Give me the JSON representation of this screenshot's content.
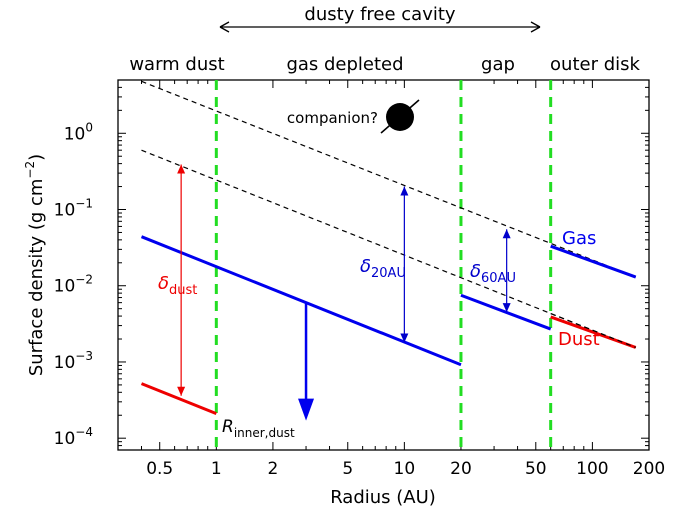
{
  "chart_data": {
    "type": "line",
    "title": "",
    "xlabel": "Radius (AU)",
    "ylabel": "Surface density (g cm",
    "ylabel_sup": "−2",
    "ylabel_close": ")",
    "x_scale": "log",
    "y_scale": "log",
    "xlim": [
      0.3,
      200
    ],
    "ylim": [
      7e-05,
      5
    ],
    "x_ticks": [
      {
        "value": 0.5,
        "label": "0.5"
      },
      {
        "value": 1,
        "label": "1"
      },
      {
        "value": 2,
        "label": "2"
      },
      {
        "value": 5,
        "label": "5"
      },
      {
        "value": 10,
        "label": "10"
      },
      {
        "value": 20,
        "label": "20"
      },
      {
        "value": 50,
        "label": "50"
      },
      {
        "value": 100,
        "label": "100"
      },
      {
        "value": 200,
        "label": "200"
      }
    ],
    "y_ticks": [
      {
        "value": 0.0001,
        "base": "10",
        "exp": "−4"
      },
      {
        "value": 0.001,
        "base": "10",
        "exp": "−3"
      },
      {
        "value": 0.01,
        "base": "10",
        "exp": "−2"
      },
      {
        "value": 0.1,
        "base": "10",
        "exp": "−1"
      },
      {
        "value": 1,
        "base": "10",
        "exp": "0"
      }
    ],
    "vlines": [
      1,
      20,
      60
    ],
    "series": [
      {
        "name": "Gas",
        "color": "#0000ee",
        "style": "solid",
        "segments": [
          [
            [
              0.4,
              0.044
            ],
            [
              20,
              0.00092
            ]
          ],
          [
            [
              20,
              0.0075
            ],
            [
              60,
              0.0027
            ]
          ],
          [
            [
              60,
              0.033
            ],
            [
              170,
              0.013
            ]
          ]
        ]
      },
      {
        "name": "Dust",
        "color": "#ee0000",
        "style": "solid",
        "segments": [
          [
            [
              0.4,
              0.00052
            ],
            [
              1,
              0.00021
            ]
          ],
          [
            [
              60,
              0.0039
            ],
            [
              170,
              0.00155
            ]
          ]
        ]
      },
      {
        "name": "",
        "color": "#000000",
        "style": "dashed",
        "segments": [
          [
            [
              0.4,
              4.8
            ],
            [
              170,
              0.013
            ]
          ],
          [
            [
              0.4,
              0.6
            ],
            [
              170,
              0.00155
            ]
          ]
        ]
      }
    ],
    "arrows": [
      {
        "x": 0.65,
        "y1": 0.00036,
        "y2": 0.39,
        "color": "#ee0000",
        "double": true
      },
      {
        "x": 10,
        "y1": 0.0018,
        "y2": 0.2,
        "color": "#0000cc",
        "double": true
      },
      {
        "x": 35,
        "y1": 0.0045,
        "y2": 0.055,
        "color": "#0000cc",
        "double": true
      },
      {
        "x": 3,
        "y1": 0.006,
        "y2": 0.00017,
        "color": "#0000ee",
        "double": false
      }
    ],
    "labels": {
      "delta_dust": "δ",
      "delta_dust_sub": "dust",
      "delta_20": "δ",
      "delta_20_sub": "20AU",
      "delta_60": "δ",
      "delta_60_sub": "60AU",
      "gas": "Gas",
      "dust": "Dust",
      "companion": "companion?",
      "r_inner": "R",
      "r_inner_sub": "inner,dust"
    },
    "region_labels": [
      "warm dust",
      "gas depleted",
      "gap",
      "outer disk"
    ],
    "cavity_label": "dusty free cavity",
    "colors": {
      "gas": "#0000ee",
      "dust": "#ee0000",
      "boundary": "#22dd22",
      "delta_arrows": "#0000cc"
    }
  }
}
